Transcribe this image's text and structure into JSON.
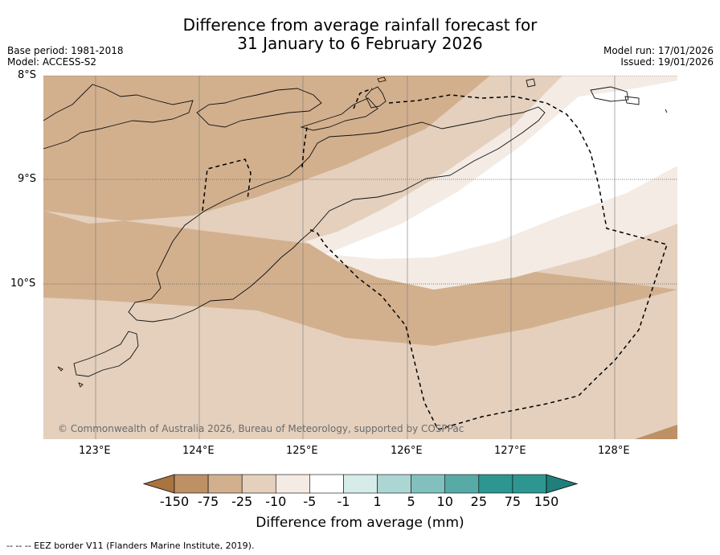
{
  "title_line1": "Difference from average rainfall forecast for",
  "title_line2": "31 January to 6 February 2026",
  "meta_left": {
    "base_period": "Base period: 1981-2018",
    "model": "Model: ACCESS-S2"
  },
  "meta_right": {
    "model_run": "Model run: 17/01/2026",
    "issued": "Issued: 19/01/2026"
  },
  "lat_labels": [
    "8°S",
    "9°S",
    "10°S"
  ],
  "lon_labels": [
    "123°E",
    "124°E",
    "125°E",
    "126°E",
    "127°E",
    "128°E"
  ],
  "copyright": "© Commonwealth of Australia 2026, Bureau of Meteorology, supported by COSPPac",
  "colorbar": {
    "ticks": [
      "-150",
      "-75",
      "-25",
      "-10",
      "-5",
      "-1",
      "1",
      "5",
      "10",
      "25",
      "75",
      "150"
    ],
    "colors": [
      "#a87440",
      "#be9066",
      "#d2b08e",
      "#e4d0bd",
      "#f4ebe4",
      "#ffffff",
      "#d5ece9",
      "#acd6d3",
      "#82c0bd",
      "#58aaa7",
      "#2e9690",
      "#1f7f7a"
    ],
    "label": "Difference from average (mm)"
  },
  "footnote": "--  --  -- EEZ border V11 (Flanders Marine Institute, 2019)."
}
